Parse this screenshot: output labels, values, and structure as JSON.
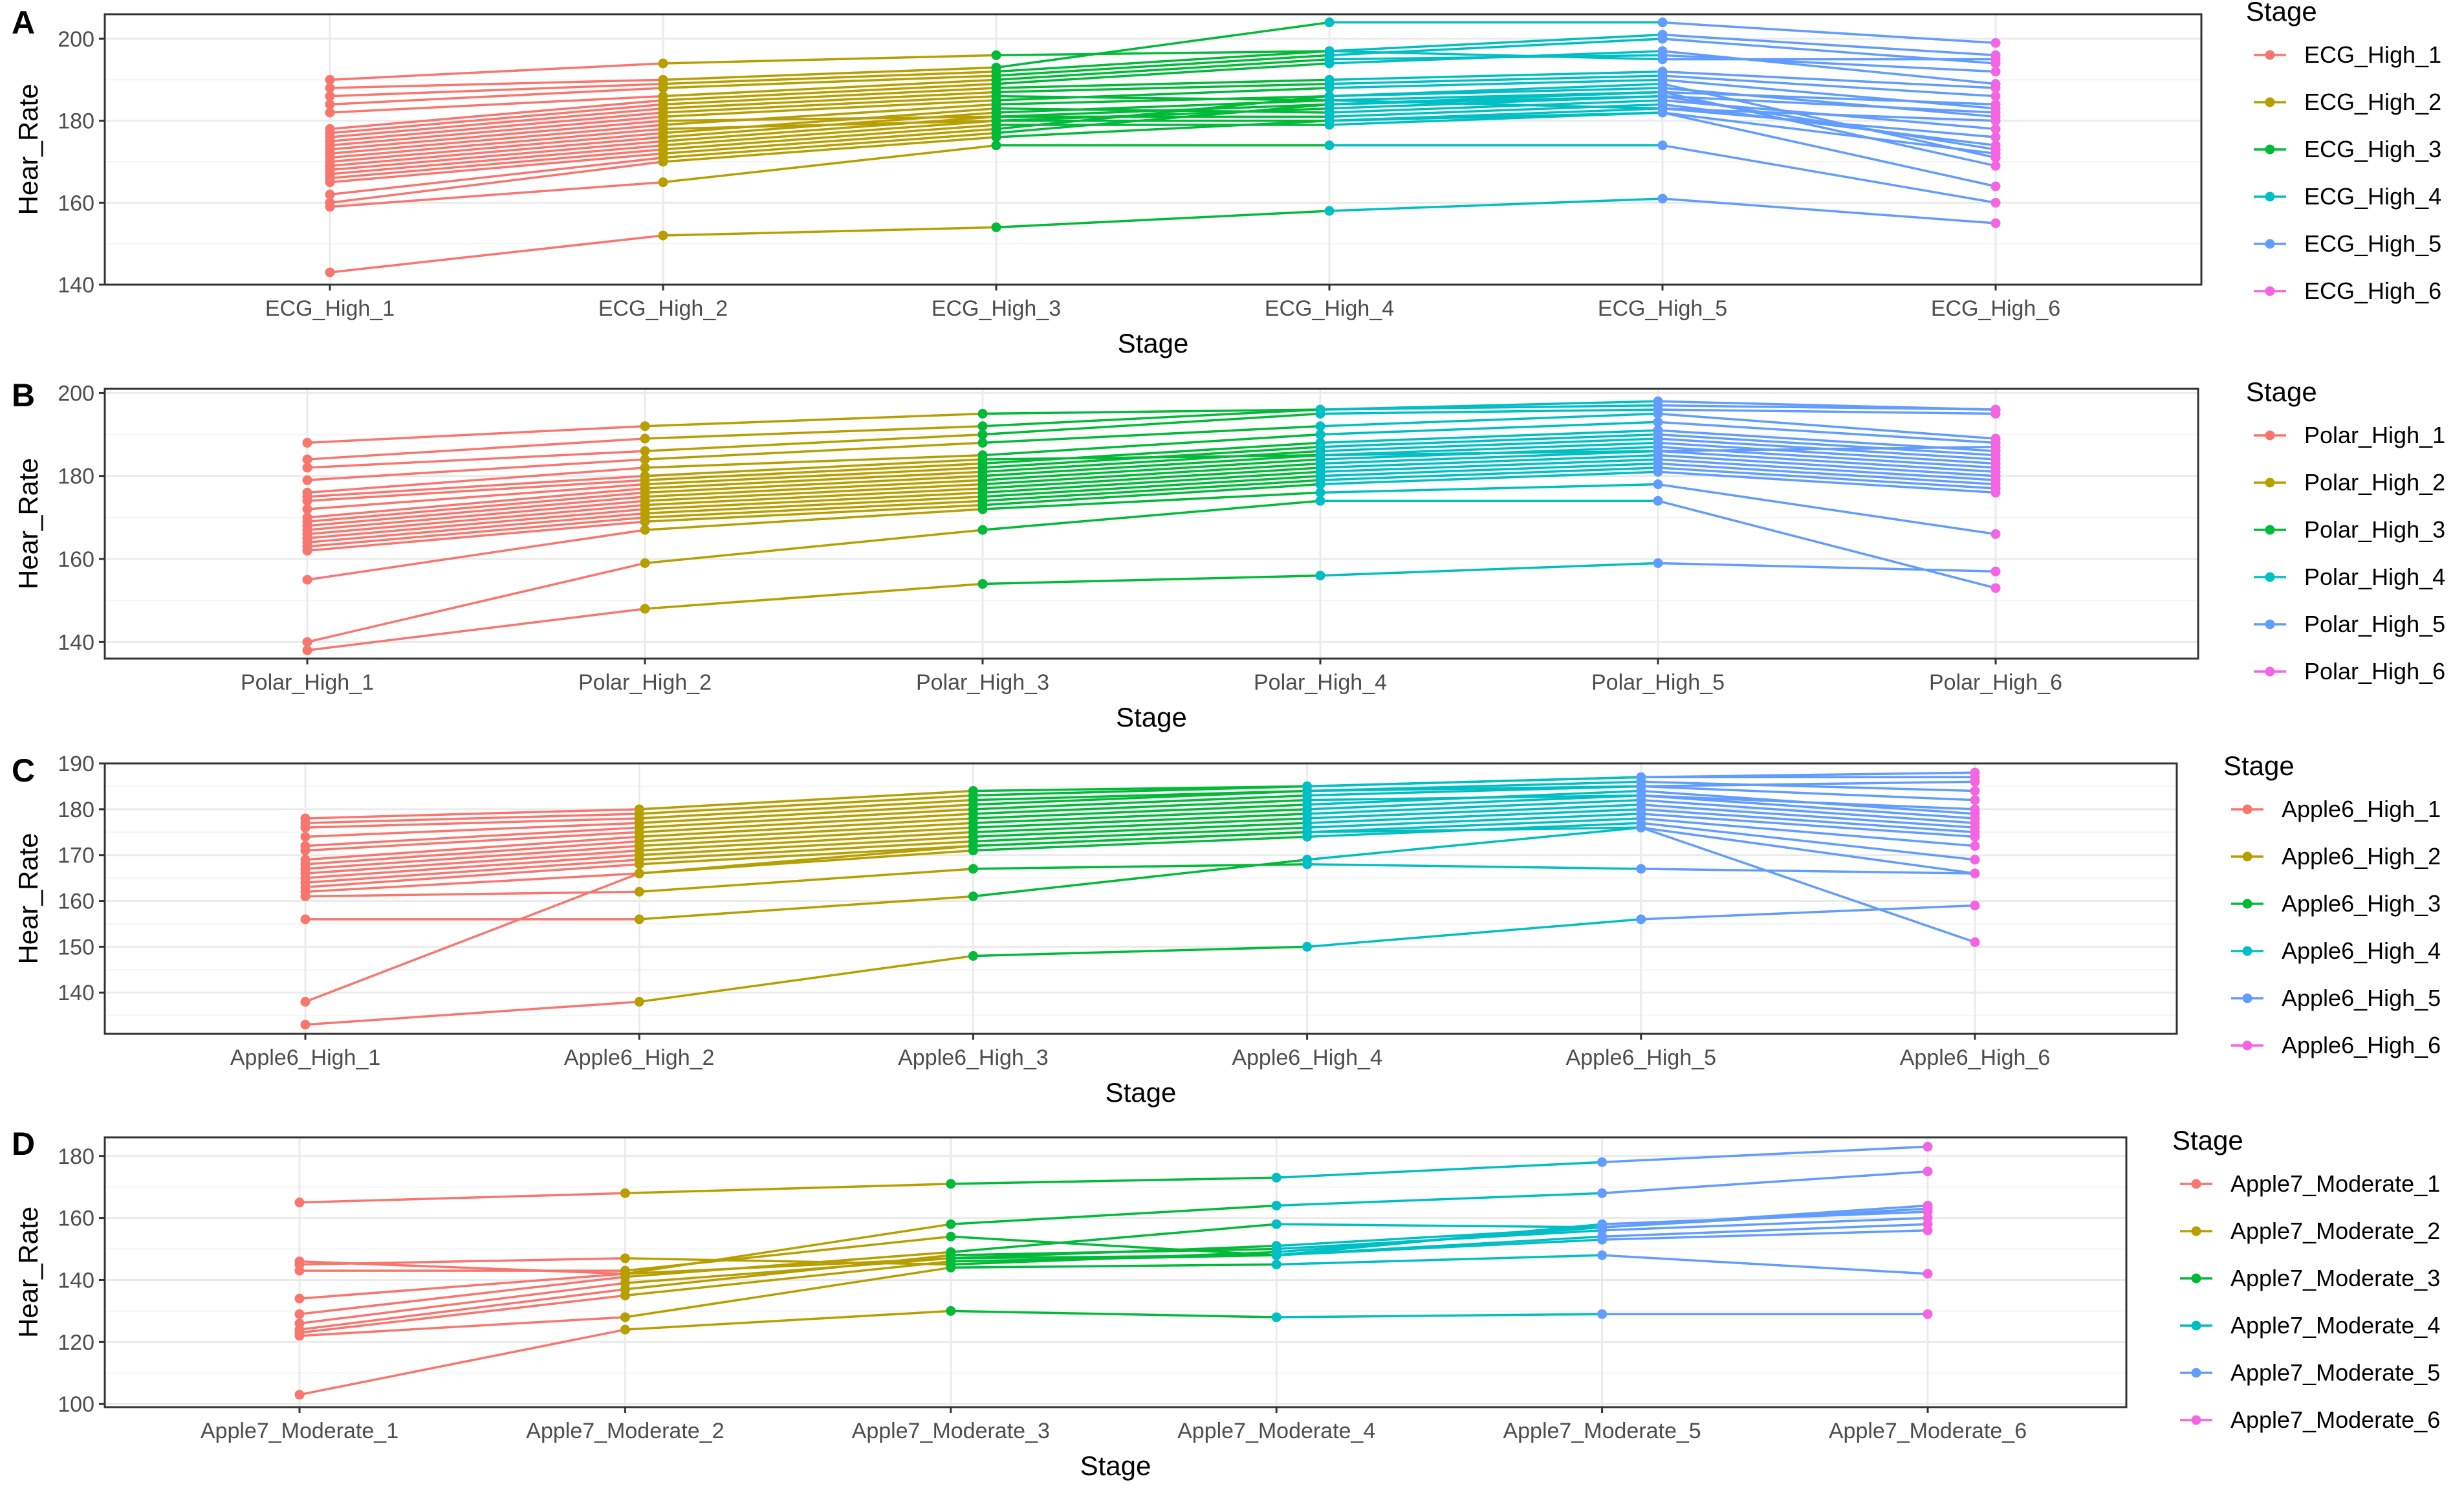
{
  "colors": {
    "stage1": "#F8766D",
    "stage2": "#B79F00",
    "stage3": "#00BA38",
    "stage4": "#00BFC4",
    "stage5": "#619CFF",
    "stage6": "#F564E3",
    "grid_major": "#EBEBEB",
    "grid_minor": "#F5F5F5",
    "panel_border": "#333333",
    "axis_text": "#4D4D4D"
  },
  "chart_data": [
    {
      "type": "line",
      "tag": "A",
      "xlabel": "Stage",
      "ylabel": "Hear_Rate",
      "legend_title": "Stage",
      "legend_position": "right",
      "grid": true,
      "categories": [
        "ECG_High_1",
        "ECG_High_2",
        "ECG_High_3",
        "ECG_High_4",
        "ECG_High_5",
        "ECG_High_6"
      ],
      "yticks": [
        140,
        160,
        180,
        200
      ],
      "ylim": [
        140,
        206
      ],
      "series": [
        {
          "values": [
            143,
            152,
            154,
            158,
            161,
            155
          ]
        },
        {
          "values": [
            159,
            165,
            174,
            174,
            174,
            160
          ]
        },
        {
          "values": [
            160,
            170,
            176,
            180,
            182,
            164
          ]
        },
        {
          "values": [
            162,
            171,
            177,
            184,
            187,
            169
          ]
        },
        {
          "values": [
            165,
            172,
            178,
            186,
            189,
            171
          ]
        },
        {
          "values": [
            166,
            173,
            179,
            179,
            182,
            172
          ]
        },
        {
          "values": [
            167,
            174,
            180,
            183,
            186,
            173
          ]
        },
        {
          "values": [
            168,
            175,
            181,
            181,
            184,
            174
          ]
        },
        {
          "values": [
            169,
            176,
            182,
            185,
            183,
            176
          ]
        },
        {
          "values": [
            170,
            177,
            183,
            182,
            185,
            178
          ]
        },
        {
          "values": [
            171,
            178,
            180,
            180,
            183,
            180
          ]
        },
        {
          "values": [
            172,
            179,
            184,
            186,
            188,
            181
          ]
        },
        {
          "values": [
            173,
            180,
            181,
            184,
            186,
            182
          ]
        },
        {
          "values": [
            174,
            181,
            185,
            188,
            190,
            183
          ]
        },
        {
          "values": [
            175,
            182,
            186,
            185,
            187,
            184
          ]
        },
        {
          "values": [
            176,
            183,
            187,
            189,
            191,
            186
          ]
        },
        {
          "values": [
            177,
            184,
            188,
            190,
            192,
            188
          ]
        },
        {
          "values": [
            178,
            185,
            189,
            194,
            197,
            189
          ]
        },
        {
          "values": [
            182,
            186,
            190,
            195,
            196,
            192
          ]
        },
        {
          "values": [
            184,
            188,
            191,
            196,
            200,
            194
          ]
        },
        {
          "values": [
            186,
            189,
            192,
            197,
            201,
            196
          ]
        },
        {
          "values": [
            188,
            190,
            193,
            204,
            204,
            199
          ]
        },
        {
          "values": [
            190,
            194,
            196,
            197,
            195,
            195
          ]
        }
      ]
    },
    {
      "type": "line",
      "tag": "B",
      "xlabel": "Stage",
      "ylabel": "Hear_Rate",
      "legend_title": "Stage",
      "legend_position": "right",
      "grid": true,
      "categories": [
        "Polar_High_1",
        "Polar_High_2",
        "Polar_High_3",
        "Polar_High_4",
        "Polar_High_5",
        "Polar_High_6"
      ],
      "yticks": [
        140,
        160,
        180,
        200
      ],
      "ylim": [
        136,
        201
      ],
      "series": [
        {
          "values": [
            138,
            148,
            154,
            156,
            159,
            157
          ]
        },
        {
          "values": [
            140,
            159,
            167,
            174,
            174,
            153
          ]
        },
        {
          "values": [
            155,
            167,
            172,
            176,
            178,
            166
          ]
        },
        {
          "values": [
            162,
            169,
            173,
            178,
            181,
            176
          ]
        },
        {
          "values": [
            163,
            170,
            174,
            179,
            182,
            177
          ]
        },
        {
          "values": [
            164,
            171,
            175,
            180,
            183,
            178
          ]
        },
        {
          "values": [
            165,
            172,
            176,
            181,
            184,
            179
          ]
        },
        {
          "values": [
            166,
            173,
            177,
            182,
            185,
            180
          ]
        },
        {
          "values": [
            167,
            174,
            178,
            183,
            186,
            181
          ]
        },
        {
          "values": [
            168,
            175,
            179,
            184,
            187,
            182
          ]
        },
        {
          "values": [
            169,
            176,
            180,
            185,
            188,
            183
          ]
        },
        {
          "values": [
            170,
            177,
            181,
            186,
            189,
            184
          ]
        },
        {
          "values": [
            172,
            178,
            182,
            187,
            190,
            185
          ]
        },
        {
          "values": [
            174,
            179,
            183,
            188,
            191,
            186
          ]
        },
        {
          "values": [
            175,
            180,
            184,
            185,
            186,
            187
          ]
        },
        {
          "values": [
            176,
            182,
            185,
            190,
            193,
            188
          ]
        },
        {
          "values": [
            179,
            184,
            188,
            192,
            195,
            189
          ]
        },
        {
          "values": [
            182,
            186,
            190,
            195,
            196,
            195
          ]
        },
        {
          "values": [
            184,
            189,
            192,
            196,
            198,
            196
          ]
        },
        {
          "values": [
            188,
            192,
            195,
            196,
            197,
            196
          ]
        }
      ]
    },
    {
      "type": "line",
      "tag": "C",
      "xlabel": "Stage",
      "ylabel": "Hear_Rate",
      "legend_title": "Stage",
      "legend_position": "right",
      "grid": true,
      "categories": [
        "Apple6_High_1",
        "Apple6_High_2",
        "Apple6_High_3",
        "Apple6_High_4",
        "Apple6_High_5",
        "Apple6_High_6"
      ],
      "yticks": [
        140,
        150,
        160,
        170,
        180,
        190
      ],
      "ylim": [
        131,
        190
      ],
      "series": [
        {
          "values": [
            133,
            138,
            148,
            150,
            156,
            159
          ]
        },
        {
          "values": [
            138,
            166,
            172,
            175,
            176,
            151
          ]
        },
        {
          "values": [
            156,
            156,
            161,
            169,
            176,
            166
          ]
        },
        {
          "values": [
            161,
            162,
            167,
            168,
            167,
            166
          ]
        },
        {
          "values": [
            162,
            166,
            171,
            174,
            177,
            169
          ]
        },
        {
          "values": [
            163,
            168,
            172,
            175,
            178,
            172
          ]
        },
        {
          "values": [
            164,
            169,
            173,
            176,
            179,
            174
          ]
        },
        {
          "values": [
            165,
            170,
            174,
            177,
            180,
            175
          ]
        },
        {
          "values": [
            166,
            171,
            175,
            178,
            181,
            176
          ]
        },
        {
          "values": [
            167,
            172,
            176,
            179,
            182,
            177
          ]
        },
        {
          "values": [
            168,
            173,
            177,
            180,
            183,
            178
          ]
        },
        {
          "values": [
            169,
            174,
            178,
            181,
            184,
            179
          ]
        },
        {
          "values": [
            171,
            175,
            179,
            182,
            183,
            180
          ]
        },
        {
          "values": [
            172,
            176,
            180,
            183,
            185,
            182
          ]
        },
        {
          "values": [
            174,
            177,
            181,
            184,
            186,
            184
          ]
        },
        {
          "values": [
            176,
            178,
            182,
            184,
            185,
            186
          ]
        },
        {
          "values": [
            177,
            179,
            183,
            185,
            187,
            187
          ]
        },
        {
          "values": [
            178,
            180,
            184,
            185,
            187,
            188
          ]
        }
      ]
    },
    {
      "type": "line",
      "tag": "D",
      "xlabel": "Stage",
      "ylabel": "Hear_Rate",
      "legend_title": "Stage",
      "legend_position": "right",
      "grid": true,
      "categories": [
        "Apple7_Moderate_1",
        "Apple7_Moderate_2",
        "Apple7_Moderate_3",
        "Apple7_Moderate_4",
        "Apple7_Moderate_5",
        "Apple7_Moderate_6"
      ],
      "yticks": [
        100,
        120,
        140,
        160,
        180
      ],
      "ylim": [
        99,
        186
      ],
      "series": [
        {
          "values": [
            103,
            124,
            130,
            128,
            129,
            129
          ]
        },
        {
          "values": [
            122,
            128,
            144,
            145,
            148,
            142
          ]
        },
        {
          "values": [
            123,
            135,
            146,
            148,
            153,
            156
          ]
        },
        {
          "values": [
            124,
            137,
            148,
            150,
            156,
            160
          ]
        },
        {
          "values": [
            126,
            139,
            147,
            151,
            157,
            163
          ]
        },
        {
          "values": [
            129,
            141,
            149,
            158,
            157,
            163
          ]
        },
        {
          "values": [
            134,
            142,
            158,
            164,
            168,
            175
          ]
        },
        {
          "values": [
            143,
            143,
            154,
            148,
            154,
            158
          ]
        },
        {
          "values": [
            145,
            147,
            145,
            149,
            157,
            164
          ]
        },
        {
          "values": [
            146,
            142,
            147,
            148,
            158,
            162
          ]
        },
        {
          "values": [
            165,
            168,
            171,
            173,
            178,
            183
          ]
        }
      ]
    }
  ]
}
